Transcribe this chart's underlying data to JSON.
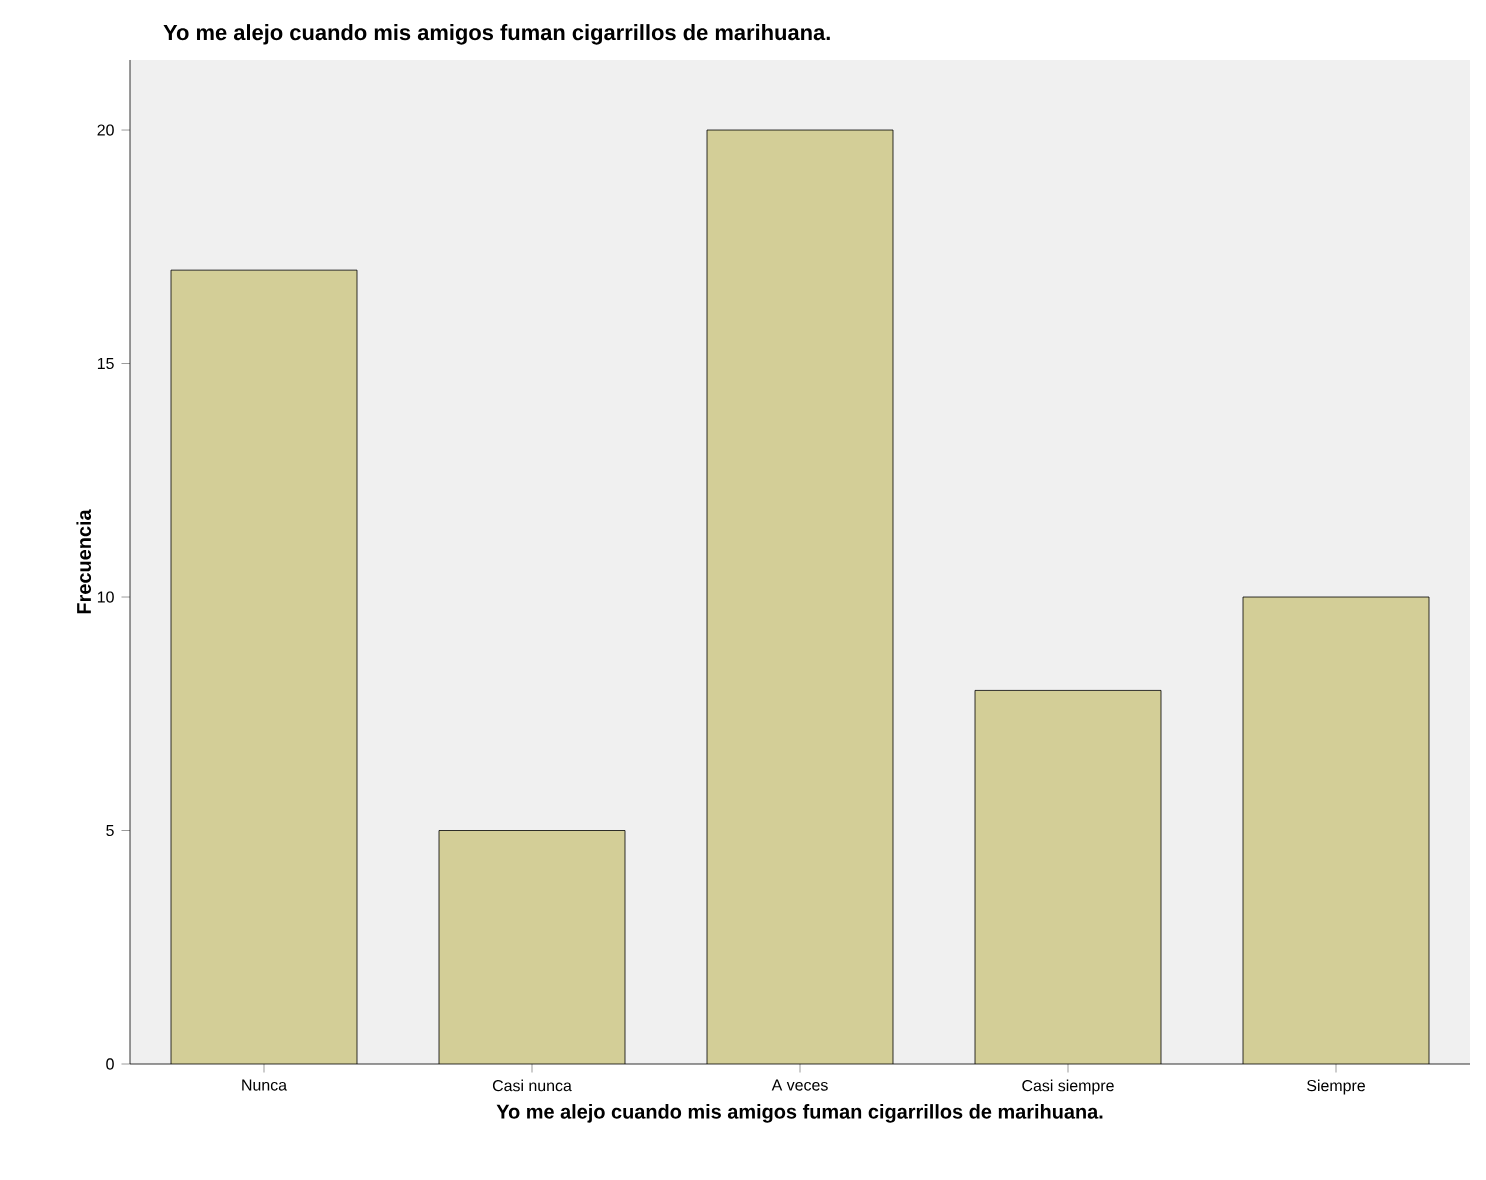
{
  "chart_data": {
    "type": "bar",
    "title": "Yo me alejo cuando mis amigos fuman cigarrillos de marihuana.",
    "xlabel": "Yo me alejo cuando mis amigos fuman cigarrillos de marihuana.",
    "ylabel": "Frecuencia",
    "categories": [
      "Nunca",
      "Casi nunca",
      "A veces",
      "Casi siempre",
      "Siempre"
    ],
    "values": [
      17,
      5,
      20,
      8,
      10
    ],
    "color": "#d3ce97",
    "ylim": [
      0,
      21.5
    ],
    "yticks": [
      0,
      5,
      10,
      15,
      20
    ],
    "grid": false
  }
}
